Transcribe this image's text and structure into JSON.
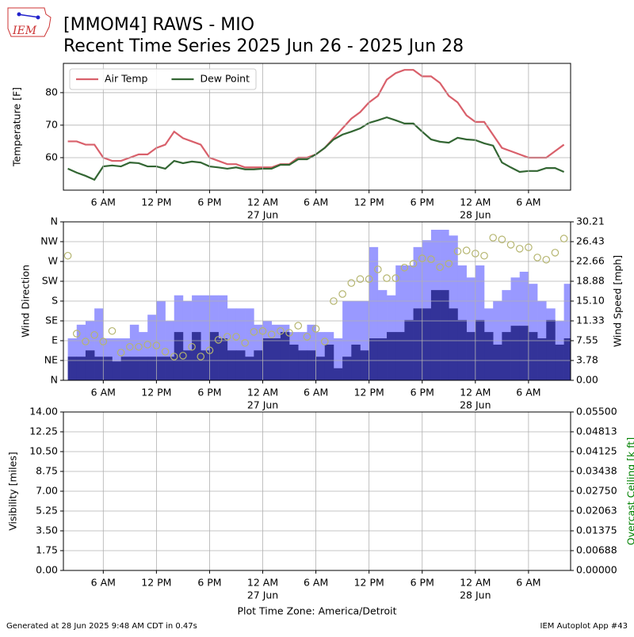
{
  "logo": "IEM",
  "title": [
    "[MMOM4] RAWS - MIO",
    "Recent Time Series 2025 Jun 26 - 2025 Jun 28"
  ],
  "footer_left": "Generated at 28 Jun 2025 9:48 AM CDT in 0.47s",
  "footer_right": "IEM Autoplot App #43",
  "chart_data": [
    {
      "type": "line",
      "ylabel": "Temperature [F]",
      "legend": "upper left",
      "grid": true,
      "xlim": [
        "2025-06-26 01:30",
        "2025-06-28 10:45"
      ],
      "ylim": [
        50,
        89
      ],
      "yticks": [
        60,
        70,
        80
      ],
      "xticks": [
        {
          "value": "2025-06-26 06:00",
          "label": "6 AM"
        },
        {
          "value": "2025-06-26 12:00",
          "label": "12 PM"
        },
        {
          "value": "2025-06-26 18:00",
          "label": "6 PM"
        },
        {
          "value": "2025-06-27 00:00",
          "label": "12 AM"
        },
        {
          "value": "2025-06-27 06:00",
          "label": "6 AM"
        },
        {
          "value": "2025-06-27 12:00",
          "label": "12 PM"
        },
        {
          "value": "2025-06-27 18:00",
          "label": "6 PM"
        },
        {
          "value": "2025-06-28 00:00",
          "label": "12 AM"
        },
        {
          "value": "2025-06-28 06:00",
          "label": "6 AM"
        }
      ],
      "xtick_dates": [
        {
          "value": "2025-06-27 00:00",
          "label": "27 Jun"
        },
        {
          "value": "2025-06-28 00:00",
          "label": "28 Jun"
        }
      ],
      "x": [
        "2025-06-26 02:00",
        "2025-06-26 03:00",
        "2025-06-26 04:00",
        "2025-06-26 05:00",
        "2025-06-26 06:00",
        "2025-06-26 07:00",
        "2025-06-26 08:00",
        "2025-06-26 09:00",
        "2025-06-26 10:00",
        "2025-06-26 11:00",
        "2025-06-26 12:00",
        "2025-06-26 13:00",
        "2025-06-26 14:00",
        "2025-06-26 15:00",
        "2025-06-26 16:00",
        "2025-06-26 17:00",
        "2025-06-26 18:00",
        "2025-06-26 19:00",
        "2025-06-26 20:00",
        "2025-06-26 21:00",
        "2025-06-26 22:00",
        "2025-06-26 23:00",
        "2025-06-27 00:00",
        "2025-06-27 01:00",
        "2025-06-27 02:00",
        "2025-06-27 03:00",
        "2025-06-27 04:00",
        "2025-06-27 05:00",
        "2025-06-27 06:00",
        "2025-06-27 07:00",
        "2025-06-27 08:00",
        "2025-06-27 09:00",
        "2025-06-27 10:00",
        "2025-06-27 11:00",
        "2025-06-27 12:00",
        "2025-06-27 13:00",
        "2025-06-27 14:00",
        "2025-06-27 15:00",
        "2025-06-27 16:00",
        "2025-06-27 17:00",
        "2025-06-27 18:00",
        "2025-06-27 19:00",
        "2025-06-27 20:00",
        "2025-06-27 21:00",
        "2025-06-27 22:00",
        "2025-06-27 23:00",
        "2025-06-28 00:00",
        "2025-06-28 01:00",
        "2025-06-28 02:00",
        "2025-06-28 03:00",
        "2025-06-28 04:00",
        "2025-06-28 05:00",
        "2025-06-28 06:00",
        "2025-06-28 07:00",
        "2025-06-28 08:00",
        "2025-06-28 09:00",
        "2025-06-28 10:00"
      ],
      "series": [
        {
          "name": "Air Temp",
          "color": "#d9606b",
          "values": [
            65,
            65,
            64,
            64,
            60,
            59,
            59,
            60,
            61,
            61,
            63,
            64,
            68,
            66,
            65,
            64,
            60,
            59,
            58,
            58,
            57,
            57,
            57,
            57,
            58,
            58,
            60,
            60,
            61,
            63,
            66,
            69,
            72,
            74,
            77,
            79,
            84,
            86,
            87,
            87,
            85,
            85,
            83,
            79,
            77,
            73,
            71,
            71,
            67,
            63,
            62,
            61,
            60,
            60,
            60,
            62,
            64
          ]
        },
        {
          "name": "Dew Point",
          "color": "#336633",
          "values": [
            56.6,
            55.4,
            54.4,
            53.2,
            57.3,
            57.6,
            57.3,
            58.5,
            58.3,
            57.3,
            57.3,
            56.6,
            59,
            58.3,
            58.8,
            58.5,
            57.3,
            57,
            56.6,
            57,
            56.4,
            56.4,
            56.6,
            56.6,
            57.8,
            57.8,
            59.5,
            59.5,
            61,
            63,
            65.6,
            67.1,
            68,
            69,
            70.7,
            71.5,
            72.4,
            71.5,
            70.5,
            70.5,
            68,
            65.6,
            64.9,
            64.6,
            66.1,
            65.6,
            65.4,
            64.4,
            63.7,
            58.5,
            57,
            55.6,
            55.9,
            55.9,
            56.8,
            56.8,
            55.6
          ]
        }
      ]
    },
    {
      "type": "bar",
      "ylabel": "Wind Direction",
      "y2label": "Wind Speed [mph]",
      "grid": true,
      "xlim": [
        "2025-06-26 01:30",
        "2025-06-28 10:45"
      ],
      "ylim": [
        0,
        360
      ],
      "yticks": [
        {
          "value": 0,
          "label": "N"
        },
        {
          "value": 45,
          "label": "NE"
        },
        {
          "value": 90,
          "label": "E"
        },
        {
          "value": 135,
          "label": "SE"
        },
        {
          "value": 180,
          "label": "S"
        },
        {
          "value": 225,
          "label": "SW"
        },
        {
          "value": 270,
          "label": "W"
        },
        {
          "value": 315,
          "label": "NW"
        },
        {
          "value": 360,
          "label": "N"
        }
      ],
      "y2lim": [
        0,
        30.21
      ],
      "y2ticks": [
        {
          "value": 0,
          "label": "0.00"
        },
        {
          "value": 3.77625,
          "label": "3.78"
        },
        {
          "value": 7.5525,
          "label": "7.55"
        },
        {
          "value": 11.32875,
          "label": "11.33"
        },
        {
          "value": 15.105,
          "label": "15.10"
        },
        {
          "value": 18.88125,
          "label": "18.88"
        },
        {
          "value": 22.6575,
          "label": "22.66"
        },
        {
          "value": 26.43375,
          "label": "26.43"
        },
        30.21
      ],
      "xticks": [
        {
          "value": "2025-06-26 06:00",
          "label": "6 AM"
        },
        {
          "value": "2025-06-26 12:00",
          "label": "12 PM"
        },
        {
          "value": "2025-06-26 18:00",
          "label": "6 PM"
        },
        {
          "value": "2025-06-27 00:00",
          "label": "12 AM"
        },
        {
          "value": "2025-06-27 06:00",
          "label": "6 AM"
        },
        {
          "value": "2025-06-27 12:00",
          "label": "12 PM"
        },
        {
          "value": "2025-06-27 18:00",
          "label": "6 PM"
        },
        {
          "value": "2025-06-28 00:00",
          "label": "12 AM"
        },
        {
          "value": "2025-06-28 06:00",
          "label": "6 AM"
        }
      ],
      "xtick_dates": [
        {
          "value": "2025-06-27 00:00",
          "label": "27 Jun"
        },
        {
          "value": "2025-06-28 00:00",
          "label": "28 Jun"
        }
      ],
      "x": [
        "2025-06-26 02:00",
        "2025-06-26 03:00",
        "2025-06-26 04:00",
        "2025-06-26 05:00",
        "2025-06-26 06:00",
        "2025-06-26 07:00",
        "2025-06-26 08:00",
        "2025-06-26 09:00",
        "2025-06-26 10:00",
        "2025-06-26 11:00",
        "2025-06-26 12:00",
        "2025-06-26 13:00",
        "2025-06-26 14:00",
        "2025-06-26 15:00",
        "2025-06-26 16:00",
        "2025-06-26 17:00",
        "2025-06-26 18:00",
        "2025-06-26 19:00",
        "2025-06-26 20:00",
        "2025-06-26 21:00",
        "2025-06-26 22:00",
        "2025-06-26 23:00",
        "2025-06-27 00:00",
        "2025-06-27 01:00",
        "2025-06-27 02:00",
        "2025-06-27 03:00",
        "2025-06-27 04:00",
        "2025-06-27 05:00",
        "2025-06-27 06:00",
        "2025-06-27 07:00",
        "2025-06-27 08:00",
        "2025-06-27 09:00",
        "2025-06-27 10:00",
        "2025-06-27 11:00",
        "2025-06-27 12:00",
        "2025-06-27 13:00",
        "2025-06-27 14:00",
        "2025-06-27 15:00",
        "2025-06-27 16:00",
        "2025-06-27 17:00",
        "2025-06-27 18:00",
        "2025-06-27 19:00",
        "2025-06-27 20:00",
        "2025-06-27 21:00",
        "2025-06-27 22:00",
        "2025-06-27 23:00",
        "2025-06-28 00:00",
        "2025-06-28 01:00",
        "2025-06-28 02:00",
        "2025-06-28 03:00",
        "2025-06-28 04:00",
        "2025-06-28 05:00",
        "2025-06-28 06:00",
        "2025-06-28 07:00",
        "2025-06-28 08:00",
        "2025-06-28 09:00",
        "2025-06-28 10:00"
      ],
      "series": [
        {
          "type": "bar",
          "axis": "y2",
          "color": "#9999ff",
          "values": [
            8.0,
            10.6,
            11.3,
            13.7,
            8.0,
            8.0,
            8.0,
            10.6,
            9.2,
            12.5,
            15.1,
            11.3,
            16.2,
            15.1,
            16.2,
            16.2,
            16.2,
            16.2,
            13.7,
            13.7,
            13.7,
            10.6,
            11.3,
            10.6,
            10.6,
            9.2,
            9.2,
            10.6,
            9.2,
            9.2,
            8.0,
            15.1,
            15.1,
            15.1,
            25.4,
            17.2,
            16.2,
            21.9,
            21.9,
            25.4,
            26.7,
            28.7,
            28.7,
            27.6,
            21.9,
            19.6,
            21.9,
            13.7,
            15.1,
            17.2,
            19.6,
            20.7,
            18.4,
            15.1,
            13.7,
            11.3,
            18.4
          ]
        },
        {
          "type": "bar",
          "axis": "y2",
          "color": "#333399",
          "values": [
            4.5,
            4.5,
            5.7,
            4.5,
            4.5,
            3.6,
            4.5,
            4.5,
            4.5,
            4.5,
            4.5,
            4.5,
            9.2,
            5.7,
            9.2,
            5.7,
            9.2,
            8.0,
            5.7,
            5.7,
            4.5,
            5.7,
            8.0,
            8.0,
            9.2,
            6.8,
            5.7,
            5.7,
            4.5,
            6.8,
            2.3,
            4.5,
            6.8,
            5.7,
            8.0,
            8.0,
            9.2,
            9.2,
            11.5,
            13.7,
            13.7,
            17.2,
            17.2,
            13.7,
            11.5,
            9.2,
            11.5,
            9.2,
            6.8,
            9.2,
            10.4,
            10.4,
            9.2,
            8.0,
            11.5,
            6.8,
            8.0
          ]
        },
        {
          "type": "scatter",
          "color": "#b5b56f",
          "values": [
            283,
            106,
            88,
            103,
            88,
            112,
            63,
            76,
            76,
            81,
            79,
            65,
            54,
            56,
            76,
            54,
            68,
            92,
            99,
            99,
            85,
            110,
            112,
            104,
            112,
            108,
            124,
            99,
            117,
            88,
            180,
            196,
            221,
            230,
            230,
            252,
            232,
            232,
            256,
            265,
            277,
            275,
            257,
            265,
            293,
            295,
            288,
            283,
            324,
            320,
            308,
            299,
            302,
            279,
            274,
            290,
            322
          ]
        }
      ]
    },
    {
      "type": "line",
      "ylabel": "Visibility [miles]",
      "y2label": "Overcast Ceiling [k ft]",
      "y2label_color": "#008000",
      "grid": true,
      "xlabel": "Plot Time Zone: America/Detroit",
      "xlim": [
        "2025-06-26 01:30",
        "2025-06-28 10:45"
      ],
      "ylim": [
        0,
        14
      ],
      "yticks": [
        {
          "value": 0,
          "label": "0.00"
        },
        1.75,
        {
          "value": 3.5,
          "label": "3.50"
        },
        5.25,
        {
          "value": 7,
          "label": "7.00"
        },
        8.75,
        {
          "value": 10.5,
          "label": "10.50"
        },
        12.25,
        {
          "value": 14,
          "label": "14.00"
        }
      ],
      "y2lim": [
        0,
        0.055
      ],
      "y2ticks": [
        {
          "value": 0,
          "label": "0.00000"
        },
        {
          "value": 0.006875,
          "label": "0.00688"
        },
        0.01375,
        {
          "value": 0.020625,
          "label": "0.02063"
        },
        {
          "value": 0.0275,
          "label": "0.02750"
        },
        {
          "value": 0.034375,
          "label": "0.03438"
        },
        0.04125,
        {
          "value": 0.048125,
          "label": "0.04813"
        },
        {
          "value": 0.055,
          "label": "0.05500"
        }
      ],
      "xticks": [
        {
          "value": "2025-06-26 06:00",
          "label": "6 AM"
        },
        {
          "value": "2025-06-26 12:00",
          "label": "12 PM"
        },
        {
          "value": "2025-06-26 18:00",
          "label": "6 PM"
        },
        {
          "value": "2025-06-27 00:00",
          "label": "12 AM"
        },
        {
          "value": "2025-06-27 06:00",
          "label": "6 AM"
        },
        {
          "value": "2025-06-27 12:00",
          "label": "12 PM"
        },
        {
          "value": "2025-06-27 18:00",
          "label": "6 PM"
        },
        {
          "value": "2025-06-28 00:00",
          "label": "12 AM"
        },
        {
          "value": "2025-06-28 06:00",
          "label": "6 AM"
        }
      ],
      "xtick_dates": [
        {
          "value": "2025-06-27 00:00",
          "label": "27 Jun"
        },
        {
          "value": "2025-06-28 00:00",
          "label": "28 Jun"
        }
      ],
      "series": []
    }
  ]
}
